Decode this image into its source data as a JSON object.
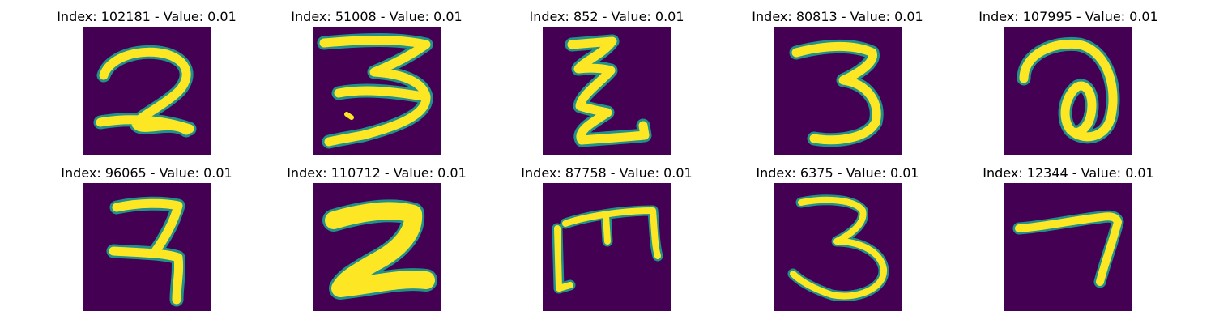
{
  "colors": {
    "background": "#440154",
    "stroke": "#fde725",
    "edge": "#21918c"
  },
  "panels": [
    {
      "index": "102181",
      "value": "0.01",
      "title": "Index: 102181 - Value: 0.01",
      "glyph": "digit-2"
    },
    {
      "index": "51008",
      "value": "0.01",
      "title": "Index: 51008 - Value: 0.01",
      "glyph": "digit-3"
    },
    {
      "index": "852",
      "value": "0.01",
      "title": "Index: 852 - Value: 0.01",
      "glyph": "digit-z"
    },
    {
      "index": "80813",
      "value": "0.01",
      "title": "Index: 80813 - Value: 0.01",
      "glyph": "digit-3"
    },
    {
      "index": "107995",
      "value": "0.01",
      "title": "Index: 107995 - Value: 0.01",
      "glyph": "digit-a"
    },
    {
      "index": "96065",
      "value": "0.01",
      "title": "Index: 96065 - Value: 0.01",
      "glyph": "digit-7"
    },
    {
      "index": "110712",
      "value": "0.01",
      "title": "Index: 110712 - Value: 0.01",
      "glyph": "digit-2"
    },
    {
      "index": "87758",
      "value": "0.01",
      "title": "Index: 87758 - Value: 0.01",
      "glyph": "digit-m"
    },
    {
      "index": "6375",
      "value": "0.01",
      "title": "Index: 6375 - Value: 0.01",
      "glyph": "digit-3"
    },
    {
      "index": "12344",
      "value": "0.01",
      "title": "Index: 12344 - Value: 0.01",
      "glyph": "digit-7"
    }
  ]
}
